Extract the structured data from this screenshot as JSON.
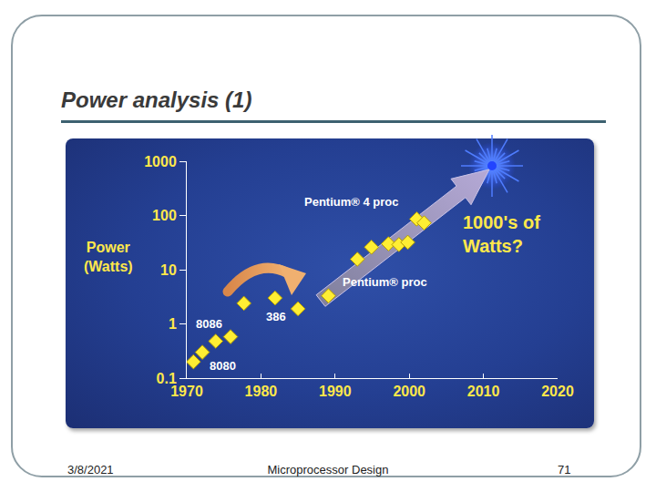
{
  "slide": {
    "title": "Power analysis (1)",
    "footer": {
      "date": "3/8/2021",
      "text": "Microprocessor Design",
      "page": 71
    }
  },
  "chart_data": {
    "type": "scatter",
    "ylabel": "Power\n(Watts)",
    "x": [
      1970.9,
      1972.1,
      1973.9,
      1975.9,
      1977.7,
      1981.9,
      1985.0,
      1989.1,
      1993.0,
      1994.9,
      1997.2,
      1998.6,
      1999.8,
      2001.0,
      2002.0
    ],
    "values": [
      0.2,
      0.3,
      0.48,
      0.58,
      2.4,
      3.0,
      1.9,
      3.3,
      15.6,
      26,
      30,
      29,
      32,
      86,
      73
    ],
    "color": "#ffee33",
    "marker": "diamond",
    "log": "y",
    "grid": false,
    "xlim": [
      1970,
      2020
    ],
    "xticks": [
      1970,
      1980,
      1990,
      2000,
      2010,
      2020
    ],
    "ylim": [
      0.1,
      1000
    ],
    "yticks": [
      0.1,
      1,
      10,
      100,
      1000
    ],
    "annotations": [
      {
        "text": "8086",
        "x": 1971.0,
        "y": 1.0
      },
      {
        "text": "8080",
        "x": 1972.8,
        "y": 0.17
      },
      {
        "text": "386",
        "x": 1980.4,
        "y": 1.36
      },
      {
        "text": "Pentium® proc",
        "x": 1990.8,
        "y": 5.9
      },
      {
        "text": "Pentium® 4 proc",
        "x": 1985.6,
        "y": 178
      },
      {
        "text": "1000's of\nWatts?",
        "x": 2007.0,
        "y": 46
      }
    ]
  }
}
